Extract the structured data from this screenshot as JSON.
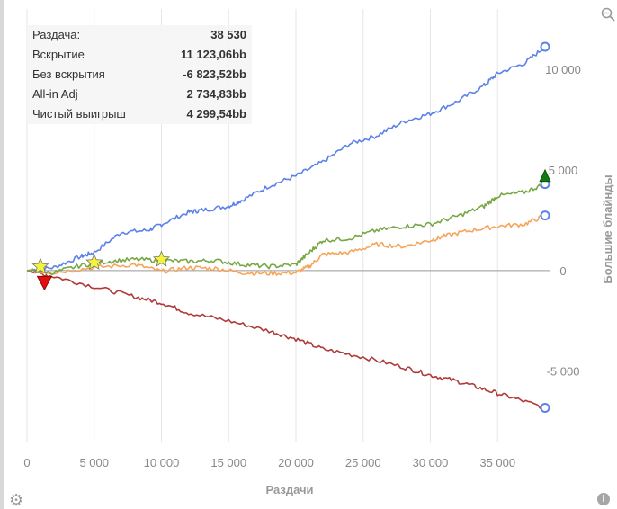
{
  "stats": {
    "rows": [
      {
        "label": "Раздача:",
        "value": "38 530"
      },
      {
        "label": "Вскрытие",
        "value": "11 123,06bb"
      },
      {
        "label": "Без вскрытия",
        "value": "-6 823,52bb"
      },
      {
        "label": "All-in Adj",
        "value": "2 734,83bb"
      },
      {
        "label": "Чистый выигрыш",
        "value": "4 299,54bb"
      }
    ]
  },
  "icons": {
    "zoom": "zoom-icon",
    "settings": "gear-icon",
    "info": "info-icon"
  },
  "chart_data": {
    "type": "line",
    "xlabel": "Раздачи",
    "ylabel": "Большие блайнды",
    "xlim": [
      0,
      38530
    ],
    "ylim": [
      -8500,
      13000
    ],
    "x_ticks": [
      0,
      5000,
      10000,
      15000,
      20000,
      25000,
      30000,
      35000
    ],
    "x_tick_labels": [
      "0",
      "5 000",
      "10 000",
      "15 000",
      "20 000",
      "25 000",
      "30 000",
      "35 000"
    ],
    "y_ticks": [
      10000,
      5000,
      0,
      -5000
    ],
    "y_tick_labels": [
      "10 000",
      "5 000",
      "0",
      "-5 000"
    ],
    "grid": true,
    "series": [
      {
        "key": "showdown",
        "color": "#5b82e8",
        "points": [
          [
            0,
            0
          ],
          [
            2000,
            150
          ],
          [
            4000,
            700
          ],
          [
            5000,
            900
          ],
          [
            7000,
            1900
          ],
          [
            9000,
            2000
          ],
          [
            10000,
            2300
          ],
          [
            12000,
            2900
          ],
          [
            13000,
            3000
          ],
          [
            15000,
            3200
          ],
          [
            16000,
            3500
          ],
          [
            18000,
            4200
          ],
          [
            20000,
            4700
          ],
          [
            22000,
            5400
          ],
          [
            24000,
            6300
          ],
          [
            26000,
            6700
          ],
          [
            28000,
            7400
          ],
          [
            30000,
            7800
          ],
          [
            32000,
            8400
          ],
          [
            34000,
            9200
          ],
          [
            35000,
            9800
          ],
          [
            37000,
            10300
          ],
          [
            38530,
            11123
          ]
        ]
      },
      {
        "key": "non_showdown",
        "color": "#b03a3a",
        "points": [
          [
            0,
            0
          ],
          [
            2000,
            -300
          ],
          [
            5000,
            -800
          ],
          [
            8000,
            -1300
          ],
          [
            10000,
            -1600
          ],
          [
            12000,
            -2100
          ],
          [
            15000,
            -2500
          ],
          [
            18000,
            -3000
          ],
          [
            20000,
            -3400
          ],
          [
            22000,
            -3900
          ],
          [
            25000,
            -4300
          ],
          [
            28000,
            -4800
          ],
          [
            30000,
            -5200
          ],
          [
            32000,
            -5500
          ],
          [
            34000,
            -5900
          ],
          [
            36000,
            -6300
          ],
          [
            38530,
            -6823
          ]
        ]
      },
      {
        "key": "allin_adj",
        "color": "#f5a55a",
        "points": [
          [
            0,
            0
          ],
          [
            2000,
            -100
          ],
          [
            5000,
            150
          ],
          [
            8000,
            300
          ],
          [
            10000,
            -50
          ],
          [
            12000,
            150
          ],
          [
            14000,
            100
          ],
          [
            16000,
            -100
          ],
          [
            18000,
            -150
          ],
          [
            20000,
            -100
          ],
          [
            21000,
            200
          ],
          [
            22000,
            800
          ],
          [
            24000,
            900
          ],
          [
            26000,
            1300
          ],
          [
            28000,
            1200
          ],
          [
            30000,
            1500
          ],
          [
            31000,
            1700
          ],
          [
            33000,
            2000
          ],
          [
            35000,
            2200
          ],
          [
            37000,
            2300
          ],
          [
            38530,
            2735
          ]
        ]
      },
      {
        "key": "net_won",
        "color": "#76a744",
        "points": [
          [
            0,
            0
          ],
          [
            2000,
            -100
          ],
          [
            4000,
            250
          ],
          [
            6000,
            450
          ],
          [
            8000,
            550
          ],
          [
            10000,
            500
          ],
          [
            12000,
            450
          ],
          [
            14000,
            500
          ],
          [
            16000,
            300
          ],
          [
            18000,
            200
          ],
          [
            20000,
            300
          ],
          [
            21000,
            900
          ],
          [
            22000,
            1500
          ],
          [
            24000,
            1600
          ],
          [
            26000,
            2000
          ],
          [
            28000,
            2200
          ],
          [
            30000,
            2300
          ],
          [
            32000,
            2700
          ],
          [
            34000,
            3200
          ],
          [
            35000,
            3700
          ],
          [
            37000,
            3900
          ],
          [
            38530,
            4300
          ]
        ]
      }
    ],
    "markers": {
      "stars": [
        [
          1000,
          200
        ],
        [
          5000,
          400
        ],
        [
          10000,
          550
        ]
      ],
      "down_triangles": [
        [
          1300,
          -600
        ]
      ],
      "up_triangles": [
        [
          38530,
          4700
        ]
      ],
      "end_circles": [
        [
          38530,
          11123
        ],
        [
          38530,
          4300
        ],
        [
          38530,
          2735
        ],
        [
          38530,
          -6823
        ]
      ]
    }
  }
}
